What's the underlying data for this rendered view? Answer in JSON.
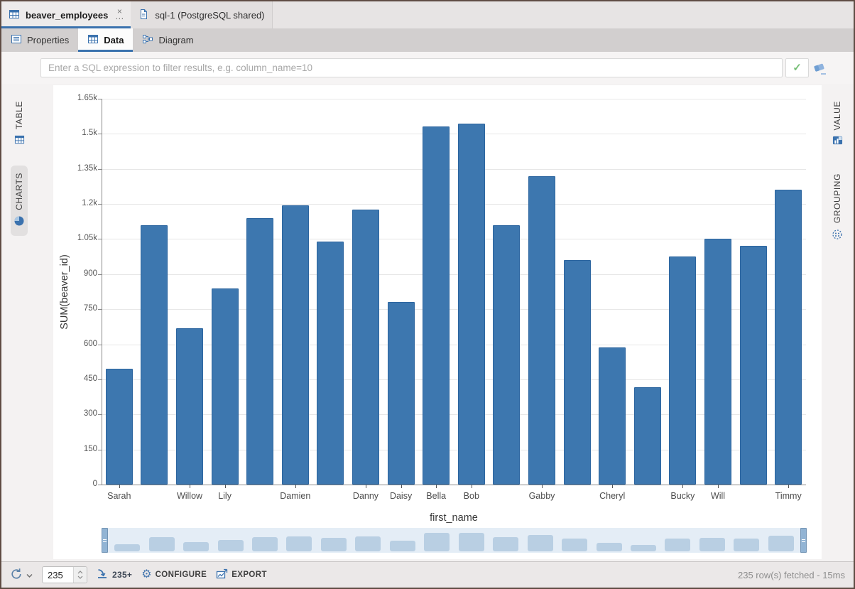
{
  "editor_tabs": [
    {
      "label": "beaver_employees",
      "active": true
    },
    {
      "label": "sql-1 (PostgreSQL shared)",
      "active": false
    }
  ],
  "result_tabs": [
    {
      "label": "Properties",
      "active": false
    },
    {
      "label": "Data",
      "active": true
    },
    {
      "label": "Diagram",
      "active": false
    }
  ],
  "glyphs": {
    "close": "×",
    "overflow": "⋯",
    "check": "✓",
    "gear": "⚙"
  },
  "filter": {
    "placeholder": "Enter a SQL expression to filter results, e.g. column_name=10"
  },
  "side_left": [
    {
      "label": "TABLE",
      "active": false
    },
    {
      "label": "CHARTS",
      "active": true
    }
  ],
  "side_right": [
    {
      "label": "VALUE",
      "active": false
    },
    {
      "label": "GROUPING",
      "active": false
    }
  ],
  "chart_data": {
    "type": "bar",
    "title": "",
    "xlabel": "first_name",
    "ylabel": "SUM(beaver_id)",
    "ylim": [
      0,
      1650
    ],
    "ytick_step": 150,
    "ytick_labels": [
      "0",
      "150",
      "300",
      "450",
      "600",
      "750",
      "900",
      "1.05k",
      "1.2k",
      "1.35k",
      "1.5k",
      "1.65k"
    ],
    "grid": true,
    "legend": false,
    "bar_color": "#3d77af",
    "bar_border_color": "#2c659f",
    "nav_bar_color": "#b9cfe3",
    "categories": [
      "Sarah",
      "",
      "Willow",
      "Lily",
      "",
      "Damien",
      "",
      "Danny",
      "Daisy",
      "Bella",
      "Bob",
      "",
      "Gabby",
      "",
      "Cheryl",
      "",
      "Bucky",
      "Will",
      "",
      "Timmy"
    ],
    "values": [
      495,
      1110,
      670,
      840,
      1140,
      1195,
      1040,
      1175,
      780,
      1530,
      1545,
      1110,
      1320,
      960,
      585,
      415,
      975,
      1050,
      1020,
      1260
    ]
  },
  "statusbar": {
    "row_count_value": "235",
    "segment_label": "235+",
    "configure_label": "CONFIGURE",
    "export_label": "EXPORT",
    "status_text": "235 row(s) fetched - 15ms"
  }
}
